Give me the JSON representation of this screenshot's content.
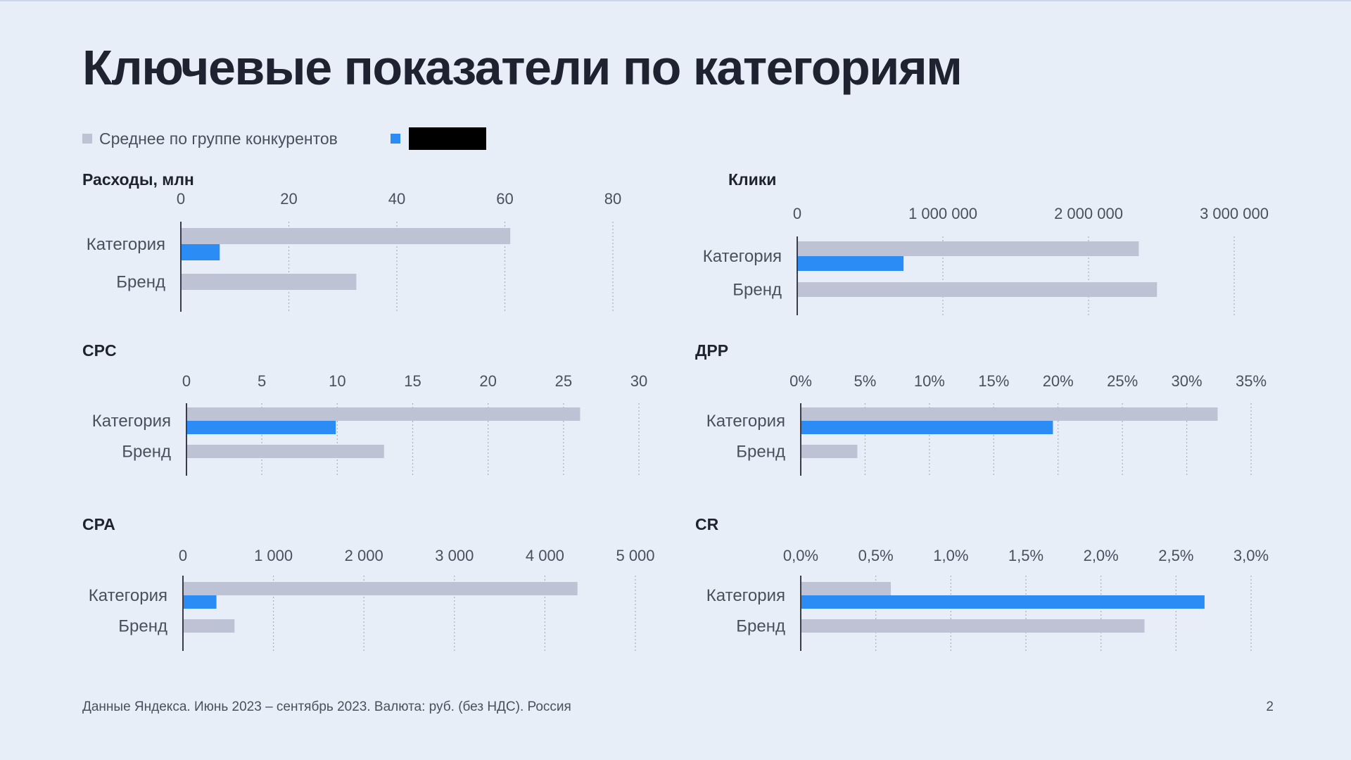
{
  "page": {
    "title": "Ключевые показатели по категориям",
    "footer": "Данные Яндекса. Июнь 2023 – сентябрь 2023. Валюта: руб. (без НДС). Россия",
    "page_number": "2"
  },
  "legend": {
    "items": [
      {
        "label": "Среднее по группе конкурентов",
        "color": "#bdc2d4"
      },
      {
        "label": "",
        "color": "#2b8cf6",
        "redacted": true
      }
    ]
  },
  "colors": {
    "competitors": "#bdc2d4",
    "brand_accent": "#2b8cf6",
    "axis": "#3a3d48",
    "grid": "#aab0c0"
  },
  "chart_data": [
    {
      "id": "expenses",
      "type": "bar",
      "orientation": "horizontal",
      "title": "Расходы, млн",
      "categories": [
        "Категория",
        "Бренд"
      ],
      "ticks": [
        0,
        20,
        40,
        60,
        80
      ],
      "tick_labels": [
        "0",
        "20",
        "40",
        "60",
        "80"
      ],
      "xlim": [
        0,
        80
      ],
      "series": [
        {
          "role": "competitors",
          "values": [
            61,
            32.5
          ]
        },
        {
          "role": "brand",
          "values": [
            7.2,
            null
          ]
        }
      ]
    },
    {
      "id": "clicks",
      "type": "bar",
      "orientation": "horizontal",
      "title": "Клики",
      "categories": [
        "Категория",
        "Бренд"
      ],
      "ticks": [
        0,
        1000000,
        2000000,
        3000000
      ],
      "tick_labels": [
        "0",
        "1 000 000",
        "2 000 000",
        "3 000 000"
      ],
      "xlim": [
        0,
        3000000
      ],
      "series": [
        {
          "role": "competitors",
          "values": [
            2345000,
            2470000
          ]
        },
        {
          "role": "brand",
          "values": [
            730000,
            null
          ]
        }
      ]
    },
    {
      "id": "cpc",
      "type": "bar",
      "orientation": "horizontal",
      "title": "CPC",
      "categories": [
        "Категория",
        "Бренд"
      ],
      "ticks": [
        0,
        5,
        10,
        15,
        20,
        25,
        30
      ],
      "tick_labels": [
        "0",
        "5",
        "10",
        "15",
        "20",
        "25",
        "30"
      ],
      "xlim": [
        0,
        30
      ],
      "series": [
        {
          "role": "competitors",
          "values": [
            26.1,
            13.1
          ]
        },
        {
          "role": "brand",
          "values": [
            9.9,
            null
          ]
        }
      ]
    },
    {
      "id": "drr",
      "type": "bar",
      "orientation": "horizontal",
      "title": "ДРР",
      "categories": [
        "Категория",
        "Бренд"
      ],
      "ticks": [
        0,
        5,
        10,
        15,
        20,
        25,
        30,
        35
      ],
      "tick_labels": [
        "0%",
        "5%",
        "10%",
        "15%",
        "20%",
        "25%",
        "30%",
        "35%"
      ],
      "xlim": [
        0,
        35
      ],
      "series": [
        {
          "role": "competitors",
          "values": [
            32.4,
            4.4
          ]
        },
        {
          "role": "brand",
          "values": [
            19.6,
            null
          ]
        }
      ]
    },
    {
      "id": "cpa",
      "type": "bar",
      "orientation": "horizontal",
      "title": "CPA",
      "categories": [
        "Категория",
        "Бренд"
      ],
      "ticks": [
        0,
        1000,
        2000,
        3000,
        4000,
        5000
      ],
      "tick_labels": [
        "0",
        "1 000",
        "2 000",
        "3 000",
        "4 000",
        "5 000"
      ],
      "xlim": [
        0,
        5000
      ],
      "series": [
        {
          "role": "competitors",
          "values": [
            4360,
            570
          ]
        },
        {
          "role": "brand",
          "values": [
            370,
            null
          ]
        }
      ]
    },
    {
      "id": "cr",
      "type": "bar",
      "orientation": "horizontal",
      "title": "CR",
      "categories": [
        "Категория",
        "Бренд"
      ],
      "ticks": [
        0,
        0.5,
        1.0,
        1.5,
        2.0,
        2.5,
        3.0
      ],
      "tick_labels": [
        "0,0%",
        "0,5%",
        "1,0%",
        "1,5%",
        "2,0%",
        "2,5%",
        "3,0%"
      ],
      "xlim": [
        0,
        3
      ],
      "series": [
        {
          "role": "competitors",
          "values": [
            0.6,
            2.29
          ]
        },
        {
          "role": "brand",
          "values": [
            2.69,
            null
          ]
        }
      ]
    }
  ]
}
